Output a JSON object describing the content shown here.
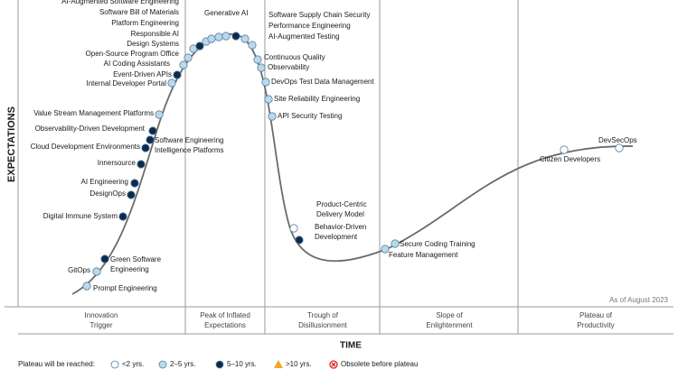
{
  "axis": {
    "y_label": "EXPECTATIONS",
    "x_label": "TIME"
  },
  "phases": [
    {
      "label": [
        "Innovation",
        "Trigger"
      ]
    },
    {
      "label": [
        "Peak of Inflated",
        "Expectations"
      ]
    },
    {
      "label": [
        "Trough of",
        "Disillusionment"
      ]
    },
    {
      "label": [
        "Slope of",
        "Enlightenment"
      ]
    },
    {
      "label": [
        "Plateau of",
        "Productivity"
      ]
    }
  ],
  "as_of": "As of August 2023",
  "legend": {
    "title": "Plateau will be reached:",
    "items": [
      {
        "label": "<2 yrs.",
        "color": "#ffffff"
      },
      {
        "label": "2–5 yrs.",
        "color": "#b9d9ec"
      },
      {
        "label": "5–10 yrs.",
        "color": "#0c2a4e"
      },
      {
        "label": ">10 yrs.",
        "color": "#f5a623"
      },
      {
        "label": "Obsolete before plateau",
        "color": "#e02020"
      }
    ]
  },
  "technologies": [
    {
      "label": [
        "Prompt Engineering"
      ],
      "color": "#b9d9ec"
    },
    {
      "label": [
        "GitOps"
      ],
      "color": "#b9d9ec"
    },
    {
      "label": [
        "Green Software",
        "Engineering"
      ],
      "color": "#0c2a4e"
    },
    {
      "label": [
        "Digital Immune System"
      ],
      "color": "#0c2a4e"
    },
    {
      "label": [
        "DesignOps"
      ],
      "color": "#0c2a4e"
    },
    {
      "label": [
        "AI Engineering"
      ],
      "color": "#0c2a4e"
    },
    {
      "label": [
        "Innersource"
      ],
      "color": "#0c2a4e"
    },
    {
      "label": [
        "Cloud Development Environments"
      ],
      "color": "#0c2a4e"
    },
    {
      "label": [
        "Software Engineering",
        "Intelligence Platforms"
      ],
      "color": "#0c2a4e"
    },
    {
      "label": [
        "Observability-Driven Development"
      ],
      "color": "#0c2a4e"
    },
    {
      "label": [
        "Value Stream Management Platforms"
      ],
      "color": "#b9d9ec"
    },
    {
      "label": [
        "Internal Developer Portal"
      ],
      "color": "#b9d9ec"
    },
    {
      "label": [
        "Event-Driven APIs"
      ],
      "color": "#0c2a4e"
    },
    {
      "label": [
        "AI Coding Assistants"
      ],
      "color": "#b9d9ec"
    },
    {
      "label": [
        "Open-Source Program Office"
      ],
      "color": "#b9d9ec"
    },
    {
      "label": [
        "Design Systems"
      ],
      "color": "#b9d9ec"
    },
    {
      "label": [
        "Responsible AI"
      ],
      "color": "#0c2a4e"
    },
    {
      "label": [
        "Platform Engineering"
      ],
      "color": "#b9d9ec"
    },
    {
      "label": [
        "Software Bill of Materials"
      ],
      "color": "#b9d9ec"
    },
    {
      "label": [
        "AI-Augmented Software Engineering"
      ],
      "color": "#b9d9ec"
    },
    {
      "label": [
        "Generative AI"
      ],
      "color": "#b9d9ec"
    },
    {
      "label": [
        "Software Supply Chain Security"
      ],
      "color": "#0c2a4e"
    },
    {
      "label": [
        "Performance Engineering"
      ],
      "color": "#b9d9ec"
    },
    {
      "label": [
        "AI-Augmented Testing"
      ],
      "color": "#b9d9ec"
    },
    {
      "label": [
        "Continuous Quality"
      ],
      "color": "#b9d9ec"
    },
    {
      "label": [
        "Observability"
      ],
      "color": "#b9d9ec"
    },
    {
      "label": [
        "DevOps Test Data Management"
      ],
      "color": "#b9d9ec"
    },
    {
      "label": [
        "Site Reliability Engineering"
      ],
      "color": "#b9d9ec"
    },
    {
      "label": [
        "API Security Testing"
      ],
      "color": "#b9d9ec"
    },
    {
      "label": [
        "Product-Centric",
        "Delivery Model"
      ],
      "color": "#ffffff"
    },
    {
      "label": [
        "Behavior-Driven",
        "Development"
      ],
      "color": "#0c2a4e"
    },
    {
      "label": [
        "Feature Management"
      ],
      "color": "#b9d9ec"
    },
    {
      "label": [
        "Secure Coding Training"
      ],
      "color": "#b9d9ec"
    },
    {
      "label": [
        "Citizen Developers"
      ],
      "color": "#ffffff"
    },
    {
      "label": [
        "DevSecOps"
      ],
      "color": "#ffffff"
    }
  ]
}
